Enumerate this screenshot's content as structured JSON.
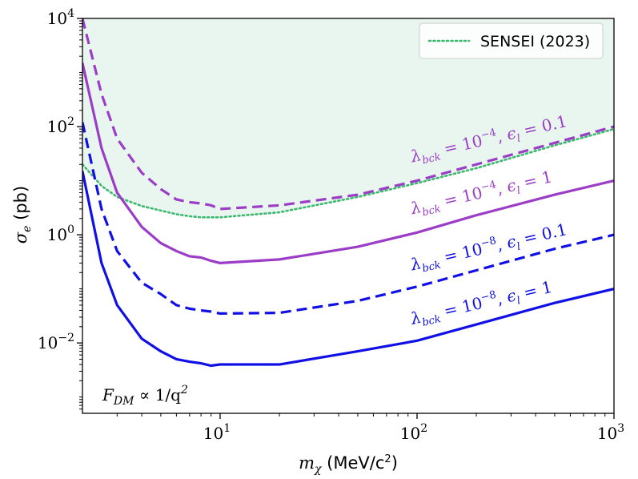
{
  "chart_data": {
    "type": "line",
    "xscale": "log",
    "yscale": "log",
    "xlim": [
      2,
      1000
    ],
    "ylim": [
      0.0005,
      10000
    ],
    "xlabel_sym": "m",
    "xlabel_sub": "χ",
    "xlabel_unit": " (MeV/c",
    "xlabel_unit_sup": "2",
    "xlabel_close": ")",
    "ylabel_sym": "σ",
    "ylabel_sub": "e",
    "ylabel_unit": " (pb)",
    "x_ticks": [
      {
        "base": "10",
        "exp": "1",
        "value": 10
      },
      {
        "base": "10",
        "exp": "2",
        "value": 100
      },
      {
        "base": "10",
        "exp": "3",
        "value": 1000
      }
    ],
    "y_ticks": [
      {
        "base": "10",
        "exp": "−2",
        "value": 0.01
      },
      {
        "base": "10",
        "exp": "0",
        "value": 1
      },
      {
        "base": "10",
        "exp": "2",
        "value": 100
      },
      {
        "base": "10",
        "exp": "4",
        "value": 10000
      }
    ],
    "legend": {
      "label": "SENSEI (2023)",
      "position": "top-right"
    },
    "formula": {
      "lhs": "F",
      "lhs_sub": "DM",
      "rhs": " ∝ 1/q",
      "rhs_sup": "2"
    },
    "colors": {
      "purple": "#9b3dc7",
      "blue": "#1010e6",
      "green": "#3cb86f",
      "fill": "#e8f6ef"
    },
    "series": [
      {
        "name": "SENSEI (2023)",
        "style": "dotted",
        "color": "#3cb86f",
        "filled": true,
        "x": [
          2,
          2.5,
          3,
          4,
          5,
          6,
          7,
          8,
          9,
          10,
          20,
          50,
          100,
          200,
          500,
          1000
        ],
        "y": [
          20,
          8,
          5,
          3.4,
          2.8,
          2.4,
          2.2,
          2.1,
          2.1,
          2.1,
          2.6,
          5.0,
          9.0,
          17,
          45,
          90
        ]
      },
      {
        "name": "λbck=1e-4, εl=0.1",
        "style": "dashed",
        "color": "#9b3dc7",
        "x": [
          2,
          2.5,
          3,
          4,
          5,
          6,
          7,
          8,
          9,
          10,
          20,
          50,
          100,
          200,
          500,
          1000
        ],
        "y": [
          10000,
          400,
          60,
          14,
          7,
          4.5,
          4,
          3.8,
          3.5,
          3.0,
          3.5,
          5.5,
          10,
          20,
          50,
          100
        ]
      },
      {
        "name": "λbck=1e-4, εl=1",
        "style": "solid",
        "color": "#9b3dc7",
        "x": [
          2,
          2.5,
          3,
          4,
          5,
          6,
          7,
          8,
          9,
          10,
          20,
          50,
          100,
          200,
          500,
          1000
        ],
        "y": [
          1500,
          40,
          6,
          1.4,
          0.7,
          0.5,
          0.4,
          0.38,
          0.33,
          0.3,
          0.35,
          0.6,
          1.1,
          2.3,
          5.5,
          10
        ]
      },
      {
        "name": "λbck=1e-8, εl=0.1",
        "style": "dashed",
        "color": "#1010e6",
        "x": [
          2,
          2.5,
          3,
          4,
          5,
          6,
          7,
          8,
          9,
          10,
          20,
          50,
          100,
          200,
          500,
          1000
        ],
        "y": [
          120,
          3,
          0.5,
          0.13,
          0.08,
          0.05,
          0.043,
          0.04,
          0.038,
          0.035,
          0.036,
          0.06,
          0.11,
          0.22,
          0.55,
          1.0
        ]
      },
      {
        "name": "λbck=1e-8, εl=1",
        "style": "solid",
        "color": "#1010e6",
        "x": [
          2,
          2.5,
          3,
          4,
          5,
          6,
          7,
          8,
          9,
          10,
          20,
          50,
          100,
          200,
          500,
          1000
        ],
        "y": [
          15,
          0.3,
          0.05,
          0.012,
          0.007,
          0.005,
          0.0045,
          0.0042,
          0.0038,
          0.004,
          0.004,
          0.007,
          0.011,
          0.022,
          0.055,
          0.1
        ]
      }
    ],
    "annotations": [
      {
        "pre": "λ",
        "sub": "bck",
        "mid": " = 10",
        "sup": "−4",
        "sep": ", ",
        "e": "ϵ",
        "esub": "l",
        "post": " = 0.1",
        "color": "#9b3dc7",
        "x": 100,
        "y": 22,
        "rot": -13
      },
      {
        "pre": "λ",
        "sub": "bck",
        "mid": " = 10",
        "sup": "−4",
        "sep": ", ",
        "e": "ϵ",
        "esub": "l",
        "post": " = 1",
        "color": "#9b3dc7",
        "x": 100,
        "y": 2.4,
        "rot": -13
      },
      {
        "pre": "λ",
        "sub": "bck",
        "mid": " = 10",
        "sup": "−8",
        "sep": ", ",
        "e": "ϵ",
        "esub": "l",
        "post": " = 0.1",
        "color": "#1010e6",
        "x": 100,
        "y": 0.22,
        "rot": -13
      },
      {
        "pre": "λ",
        "sub": "bck",
        "mid": " = 10",
        "sup": "−8",
        "sep": ", ",
        "e": "ϵ",
        "esub": "l",
        "post": " = 1",
        "color": "#1010e6",
        "x": 100,
        "y": 0.022,
        "rot": -13
      }
    ]
  }
}
